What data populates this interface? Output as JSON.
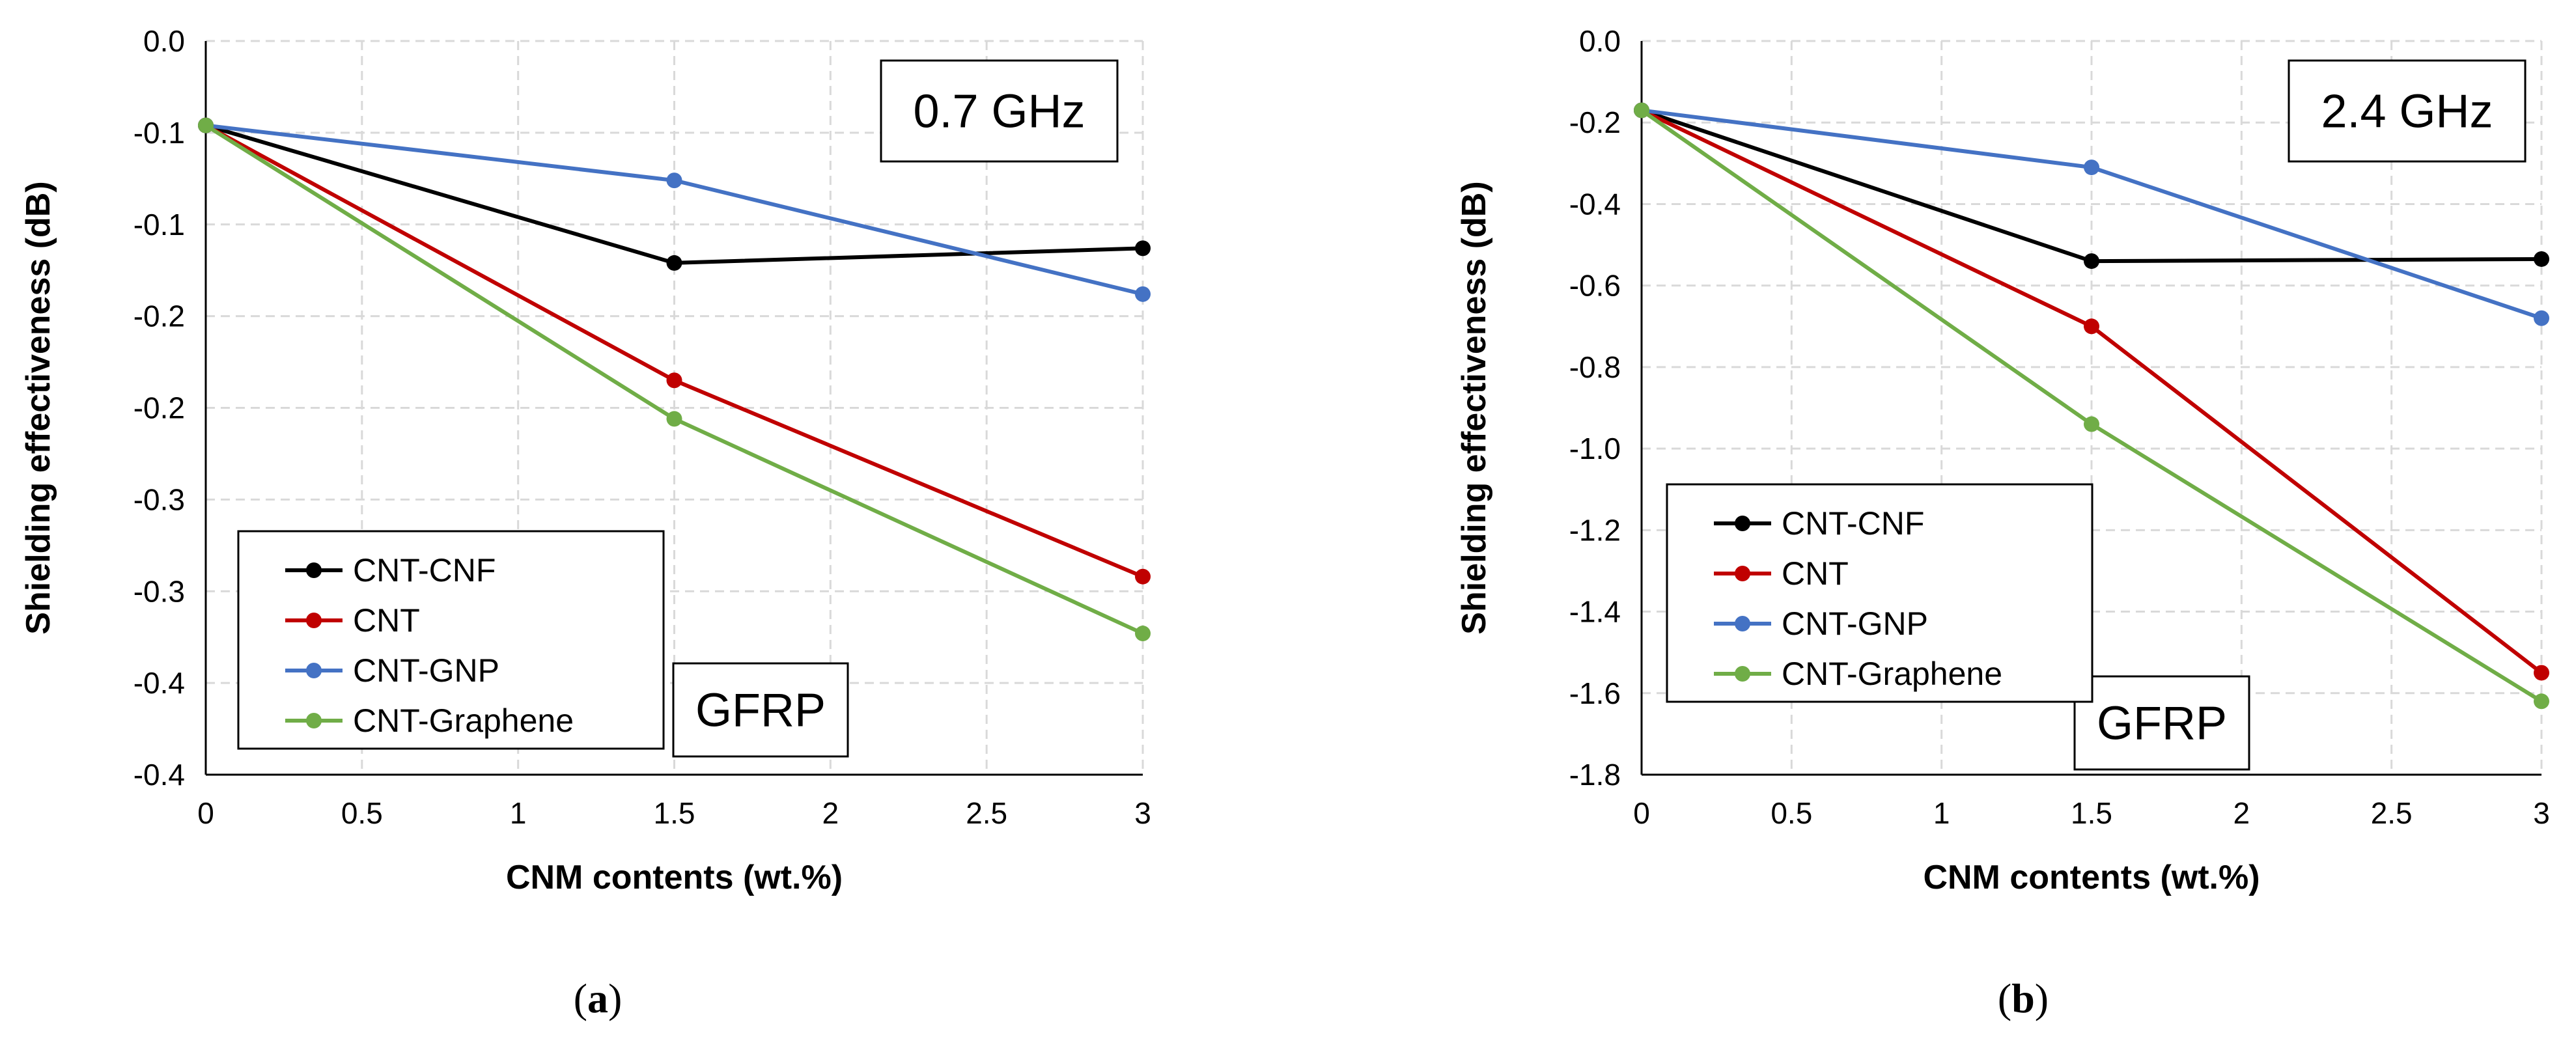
{
  "chart_data": [
    {
      "type": "line",
      "panel_label": "a",
      "frequency_label": "0.7 GHz",
      "material_label": "GFRP",
      "xlabel": "CNM contents (wt.%)",
      "ylabel": "Shielding effectiveness (dB)",
      "xlim": [
        0,
        3
      ],
      "ylim": [
        -0.4,
        0.0
      ],
      "x_ticks": [
        0,
        0.5,
        1,
        1.5,
        2,
        2.5,
        3
      ],
      "x_tick_labels": [
        "0",
        "0.5",
        "1",
        "1.5",
        "2",
        "2.5",
        "3"
      ],
      "y_ticks": [
        0.0,
        -0.05,
        -0.1,
        -0.15,
        -0.2,
        -0.25,
        -0.3,
        -0.35,
        -0.4
      ],
      "y_tick_labels": [
        "0.0",
        "-0.1",
        "-0.1",
        "-0.2",
        "-0.2",
        "-0.3",
        "-0.3",
        "-0.4",
        "-0.4"
      ],
      "grid": true,
      "legend_position": "bottom-left",
      "x": [
        0,
        1.5,
        3
      ],
      "series": [
        {
          "name": "CNT-CNF",
          "color": "#000000",
          "values": [
            -0.046,
            -0.121,
            -0.113
          ]
        },
        {
          "name": "CNT",
          "color": "#c00000",
          "values": [
            -0.046,
            -0.185,
            -0.292
          ]
        },
        {
          "name": "CNT-GNP",
          "color": "#4472c4",
          "values": [
            -0.046,
            -0.076,
            -0.138
          ]
        },
        {
          "name": "CNT-Graphene",
          "color": "#70ad47",
          "values": [
            -0.046,
            -0.206,
            -0.323
          ]
        }
      ]
    },
    {
      "type": "line",
      "panel_label": "b",
      "frequency_label": "2.4 GHz",
      "material_label": "GFRP",
      "xlabel": "CNM contents (wt.%)",
      "ylabel": "Shielding effectiveness (dB)",
      "xlim": [
        0,
        3
      ],
      "ylim": [
        -1.8,
        0.0
      ],
      "x_ticks": [
        0,
        0.5,
        1,
        1.5,
        2,
        2.5,
        3
      ],
      "x_tick_labels": [
        "0",
        "0.5",
        "1",
        "1.5",
        "2",
        "2.5",
        "3"
      ],
      "y_ticks": [
        0.0,
        -0.2,
        -0.4,
        -0.6,
        -0.8,
        -1.0,
        -1.2,
        -1.4,
        -1.6,
        -1.8
      ],
      "y_tick_labels": [
        "0.0",
        "-0.2",
        "-0.4",
        "-0.6",
        "-0.8",
        "-1.0",
        "-1.2",
        "-1.4",
        "-1.6",
        "-1.8"
      ],
      "grid": true,
      "legend_position": "bottom-left",
      "x": [
        0,
        1.5,
        3
      ],
      "series": [
        {
          "name": "CNT-CNF",
          "color": "#000000",
          "values": [
            -0.17,
            -0.54,
            -0.535
          ]
        },
        {
          "name": "CNT",
          "color": "#c00000",
          "values": [
            -0.17,
            -0.7,
            -1.55
          ]
        },
        {
          "name": "CNT-GNP",
          "color": "#4472c4",
          "values": [
            -0.17,
            -0.31,
            -0.68
          ]
        },
        {
          "name": "CNT-Graphene",
          "color": "#70ad47",
          "values": [
            -0.17,
            -0.94,
            -1.62
          ]
        }
      ]
    }
  ]
}
